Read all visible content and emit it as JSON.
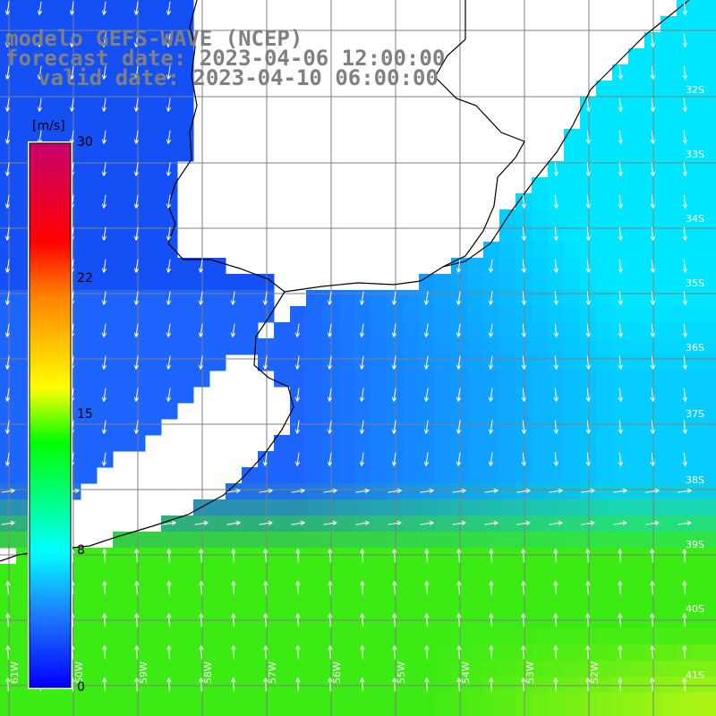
{
  "title": {
    "line1": "modelo GEFS-WAVE (NCEP)",
    "line2": "forecast date: 2023-04-06 12:00:00",
    "line3": "valid date: 2023-04-10 06:00:00"
  },
  "colorbar": {
    "unit": "[m/s]",
    "ticks": [
      "30",
      "22",
      "15",
      "8",
      "0"
    ],
    "colors": [
      "#0000ff",
      "#1e78ff",
      "#00ffff",
      "#00ff00",
      "#ffff00",
      "#ff8000",
      "#ff0000",
      "#c8006e"
    ]
  },
  "latitude_labels": [
    "32S",
    "33S",
    "34S",
    "35S",
    "36S",
    "37S",
    "38S",
    "39S",
    "40S",
    "41S"
  ],
  "longitude_labels": [
    "61W",
    "60W",
    "59W",
    "58W",
    "57W",
    "56W",
    "55W",
    "54W",
    "53W",
    "52W"
  ],
  "colors": {
    "grid": "#808080",
    "coast": "#000000",
    "arrow": "#ffffff",
    "title": "#808080"
  }
}
